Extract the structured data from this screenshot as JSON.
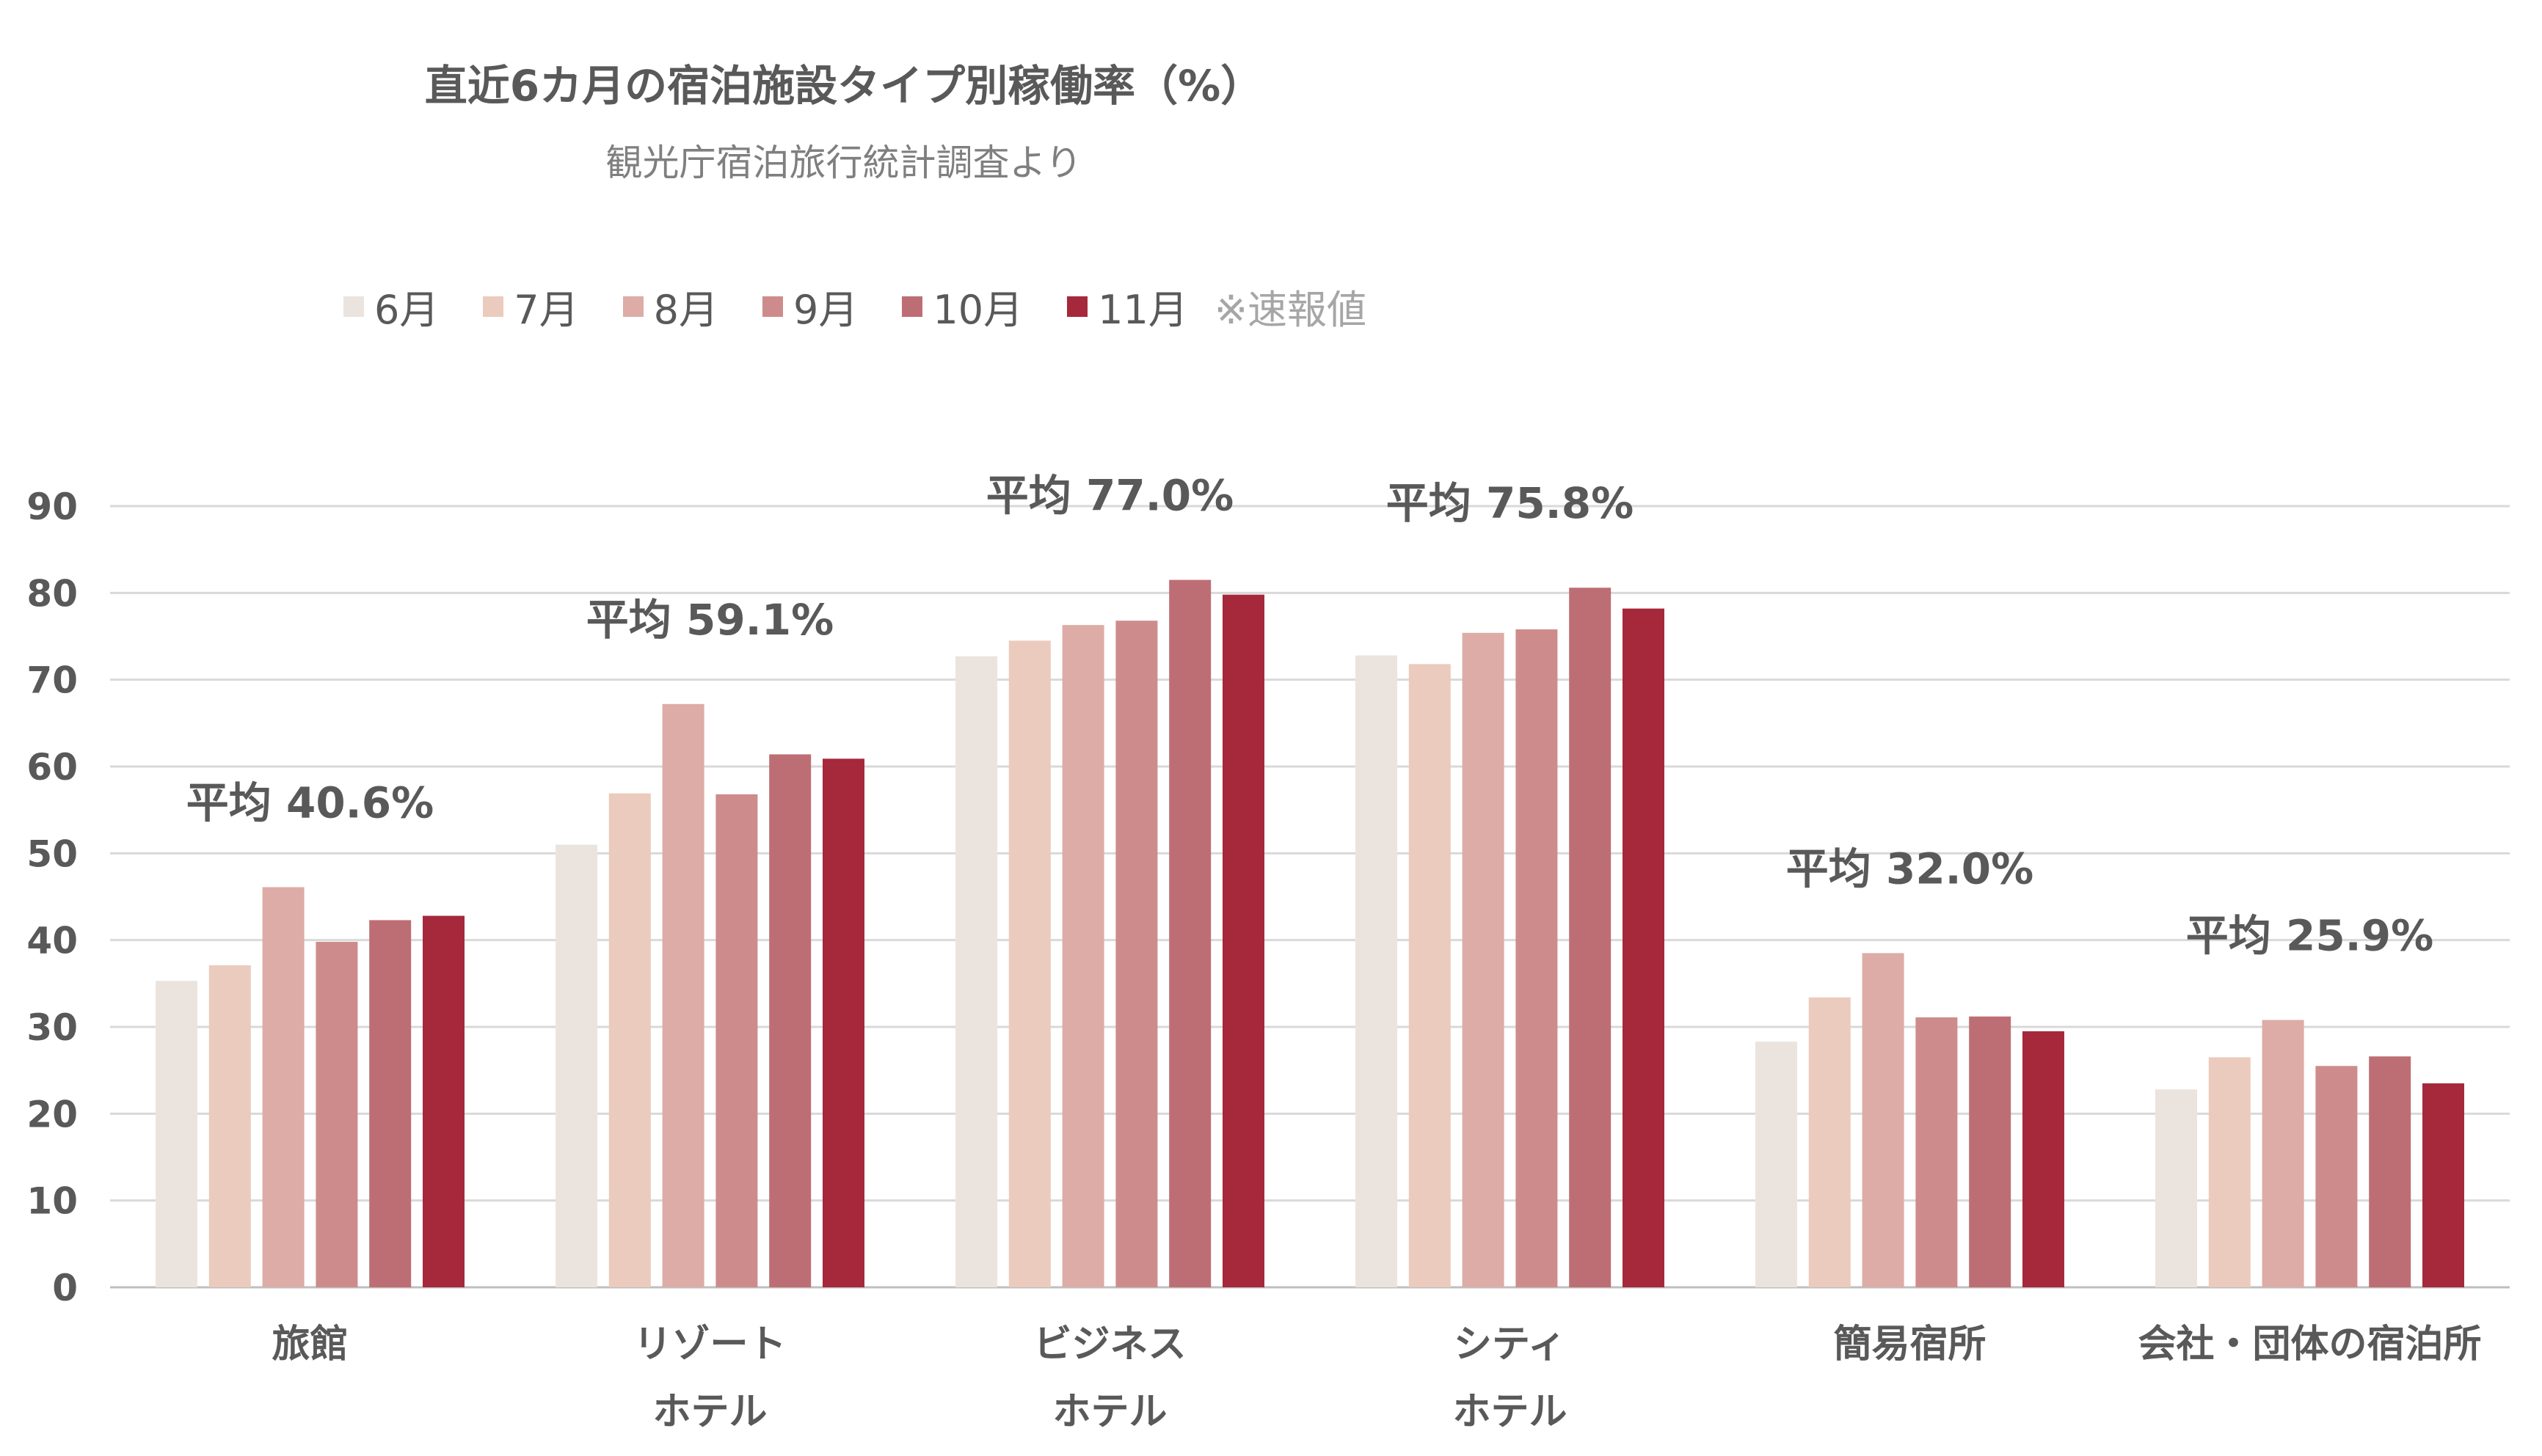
{
  "chart_data": {
    "type": "bar",
    "title": "直近6カ月の宿泊施設タイプ別稼働率（%）",
    "subtitle": "観光庁宿泊旅行統計調査より",
    "legend_note": "※速報値",
    "ylim": [
      0,
      90
    ],
    "yticks": [
      "0",
      "10",
      "20",
      "30",
      "40",
      "50",
      "60",
      "70",
      "80",
      "90"
    ],
    "grid": true,
    "legend_position": "top",
    "categories": [
      {
        "lines": [
          "旅館"
        ],
        "average_label": "平均 40.6%"
      },
      {
        "lines": [
          "リゾート",
          "ホテル"
        ],
        "average_label": "平均 59.1%"
      },
      {
        "lines": [
          "ビジネス",
          "ホテル"
        ],
        "average_label": "平均 77.0%"
      },
      {
        "lines": [
          "シティ",
          "ホテル"
        ],
        "average_label": "平均 75.8%"
      },
      {
        "lines": [
          "簡易宿所"
        ],
        "average_label": "平均 32.0%"
      },
      {
        "lines": [
          "会社・団体の宿泊所"
        ],
        "average_label": "平均 25.9%"
      }
    ],
    "series": [
      {
        "name": "6月",
        "color": "#ebe4de",
        "values": [
          35.3,
          51.0,
          72.7,
          72.8,
          28.3,
          22.8
        ]
      },
      {
        "name": "7月",
        "color": "#ebcbbd",
        "values": [
          37.1,
          56.9,
          74.5,
          71.8,
          33.4,
          26.5
        ]
      },
      {
        "name": "8月",
        "color": "#ddaca6",
        "values": [
          46.1,
          67.2,
          76.3,
          75.4,
          38.5,
          30.8
        ]
      },
      {
        "name": "9月",
        "color": "#cd8c8b",
        "values": [
          39.8,
          56.8,
          76.8,
          75.8,
          31.1,
          25.5
        ]
      },
      {
        "name": "10月",
        "color": "#bd6e74",
        "values": [
          42.3,
          61.4,
          81.5,
          80.6,
          31.2,
          26.6
        ]
      },
      {
        "name": "11月",
        "color": "#a5293b",
        "values": [
          42.8,
          60.9,
          79.8,
          78.2,
          29.5,
          23.5
        ]
      }
    ]
  }
}
